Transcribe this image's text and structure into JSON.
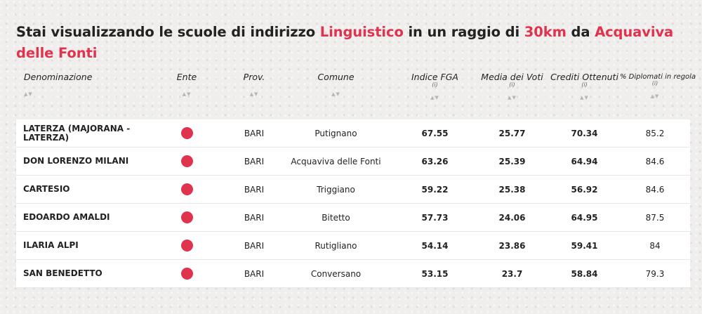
{
  "title": {
    "part1": "Stai visualizzando le scuole di indirizzo ",
    "indirizzo": "Linguistico",
    "part2": " in un raggio di ",
    "raggio": "30km",
    "part3": " da ",
    "luogo": "Acquaviva delle Fonti",
    "accent_color": "#e0334d"
  },
  "columns": {
    "denominazione": "Denominazione",
    "ente": "Ente",
    "prov": "Prov.",
    "comune": "Comune",
    "indice": "Indice FGA",
    "media": "Media dei Voti",
    "crediti": "Crediti Ottenuti",
    "diplomati": "% Diplomati in regola",
    "info_marker": "(i)",
    "sort_arrows": "▲▼"
  },
  "rows": [
    {
      "nome": "LATERZA (MAJORANA - LATERZA)",
      "prov": "BARI",
      "comune": "Putignano",
      "indice": "67.55",
      "media": "25.77",
      "crediti": "70.34",
      "diplomati": "85.2"
    },
    {
      "nome": "DON LORENZO MILANI",
      "prov": "BARI",
      "comune": "Acquaviva delle Fonti",
      "indice": "63.26",
      "media": "25.39",
      "crediti": "64.94",
      "diplomati": "84.6"
    },
    {
      "nome": "CARTESIO",
      "prov": "BARI",
      "comune": "Triggiano",
      "indice": "59.22",
      "media": "25.38",
      "crediti": "56.92",
      "diplomati": "84.6"
    },
    {
      "nome": "EDOARDO AMALDI",
      "prov": "BARI",
      "comune": "Bitetto",
      "indice": "57.73",
      "media": "24.06",
      "crediti": "64.95",
      "diplomati": "87.5"
    },
    {
      "nome": "ILARIA ALPI",
      "prov": "BARI",
      "comune": "Rutigliano",
      "indice": "54.14",
      "media": "23.86",
      "crediti": "59.41",
      "diplomati": "84"
    },
    {
      "nome": "SAN BENEDETTO",
      "prov": "BARI",
      "comune": "Conversano",
      "indice": "53.15",
      "media": "23.7",
      "crediti": "58.84",
      "diplomati": "79.3"
    }
  ]
}
